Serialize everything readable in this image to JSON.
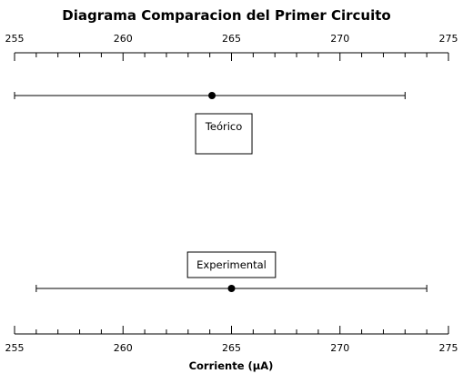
{
  "chart_data": {
    "type": "scatter",
    "title": "Diagrama Comparacion del Primer Circuito",
    "xlabel": "Corriente  (μA)",
    "xlim": [
      255,
      275
    ],
    "major_ticks": [
      255,
      260,
      265,
      270,
      275
    ],
    "minor_tick_step": 1,
    "grid": false,
    "series": [
      {
        "name": "Teórico",
        "value": 264.1,
        "low": 255.0,
        "high": 273.0
      },
      {
        "name": "Experimental",
        "value": 265.0,
        "low": 256.0,
        "high": 274.0
      }
    ]
  }
}
